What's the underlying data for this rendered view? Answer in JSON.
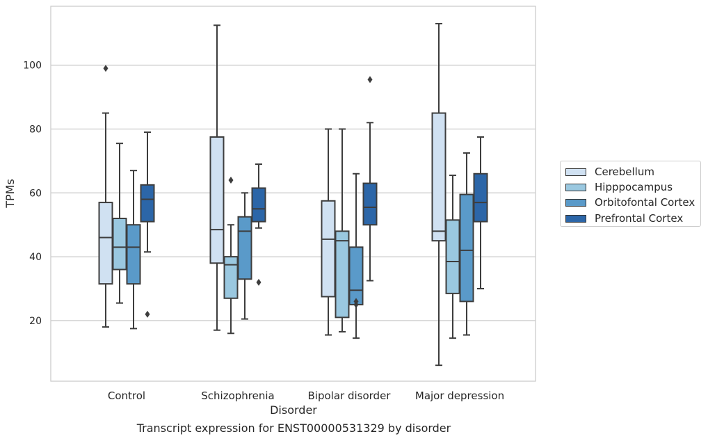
{
  "chart_data": {
    "type": "boxplot",
    "xlabel": "Disorder",
    "ylabel": "TPMs",
    "ylim": [
      0,
      118
    ],
    "yticks": [
      20,
      40,
      60,
      80,
      100
    ],
    "grid": "horizontal",
    "legend_position": "right",
    "categories": [
      "Control",
      "Schizophrenia",
      "Bipolar disorder",
      "Major depression"
    ],
    "series": [
      {
        "name": "Cerebellum",
        "color": "#d0e1f2",
        "boxes": [
          {
            "whislo": 18,
            "q1": 31.5,
            "med": 46,
            "q3": 57,
            "whishi": 85,
            "fliers": [
              99
            ]
          },
          {
            "whislo": 17,
            "q1": 38,
            "med": 48.5,
            "q3": 77.5,
            "whishi": 112.5,
            "fliers": []
          },
          {
            "whislo": 15.5,
            "q1": 27.5,
            "med": 45.5,
            "q3": 57.5,
            "whishi": 80,
            "fliers": []
          },
          {
            "whislo": 6,
            "q1": 45,
            "med": 48,
            "q3": 85,
            "whishi": 113,
            "fliers": []
          }
        ]
      },
      {
        "name": "Hipppocampus",
        "color": "#9ac8e0",
        "boxes": [
          {
            "whislo": 25.5,
            "q1": 36,
            "med": 43,
            "q3": 52,
            "whishi": 75.5,
            "fliers": []
          },
          {
            "whislo": 16,
            "q1": 27,
            "med": 37.5,
            "q3": 40,
            "whishi": 50,
            "fliers": [
              64
            ]
          },
          {
            "whislo": 16.5,
            "q1": 21,
            "med": 45,
            "q3": 48,
            "whishi": 80,
            "fliers": []
          },
          {
            "whislo": 14.5,
            "q1": 28.5,
            "med": 38.5,
            "q3": 51.5,
            "whishi": 65.5,
            "fliers": []
          }
        ]
      },
      {
        "name": "Orbitofontal Cortex",
        "color": "#5a9ac9",
        "boxes": [
          {
            "whislo": 17.5,
            "q1": 31.5,
            "med": 43,
            "q3": 50,
            "whishi": 67,
            "fliers": []
          },
          {
            "whislo": 20.5,
            "q1": 33,
            "med": 48,
            "q3": 52.5,
            "whishi": 60,
            "fliers": []
          },
          {
            "whislo": 14.5,
            "q1": 25,
            "med": 29.5,
            "q3": 43,
            "whishi": 66,
            "fliers": [
              25,
              26
            ]
          },
          {
            "whislo": 15.5,
            "q1": 26,
            "med": 42,
            "q3": 59.5,
            "whishi": 72.5,
            "fliers": []
          }
        ]
      },
      {
        "name": "Prefrontal Cortex",
        "color": "#2c66a8",
        "boxes": [
          {
            "whislo": 41.5,
            "q1": 51,
            "med": 58,
            "q3": 62.5,
            "whishi": 79,
            "fliers": [
              22
            ]
          },
          {
            "whislo": 49,
            "q1": 51,
            "med": 55,
            "q3": 61.5,
            "whishi": 69,
            "fliers": [
              32
            ]
          },
          {
            "whislo": 32.5,
            "q1": 50,
            "med": 55.5,
            "q3": 63,
            "whishi": 82,
            "fliers": [
              95.5
            ]
          },
          {
            "whislo": 30,
            "q1": 51,
            "med": 57,
            "q3": 66,
            "whishi": 77.5,
            "fliers": []
          }
        ]
      }
    ],
    "caption": "Transcript expression for ENST00000531329 by disorder"
  }
}
